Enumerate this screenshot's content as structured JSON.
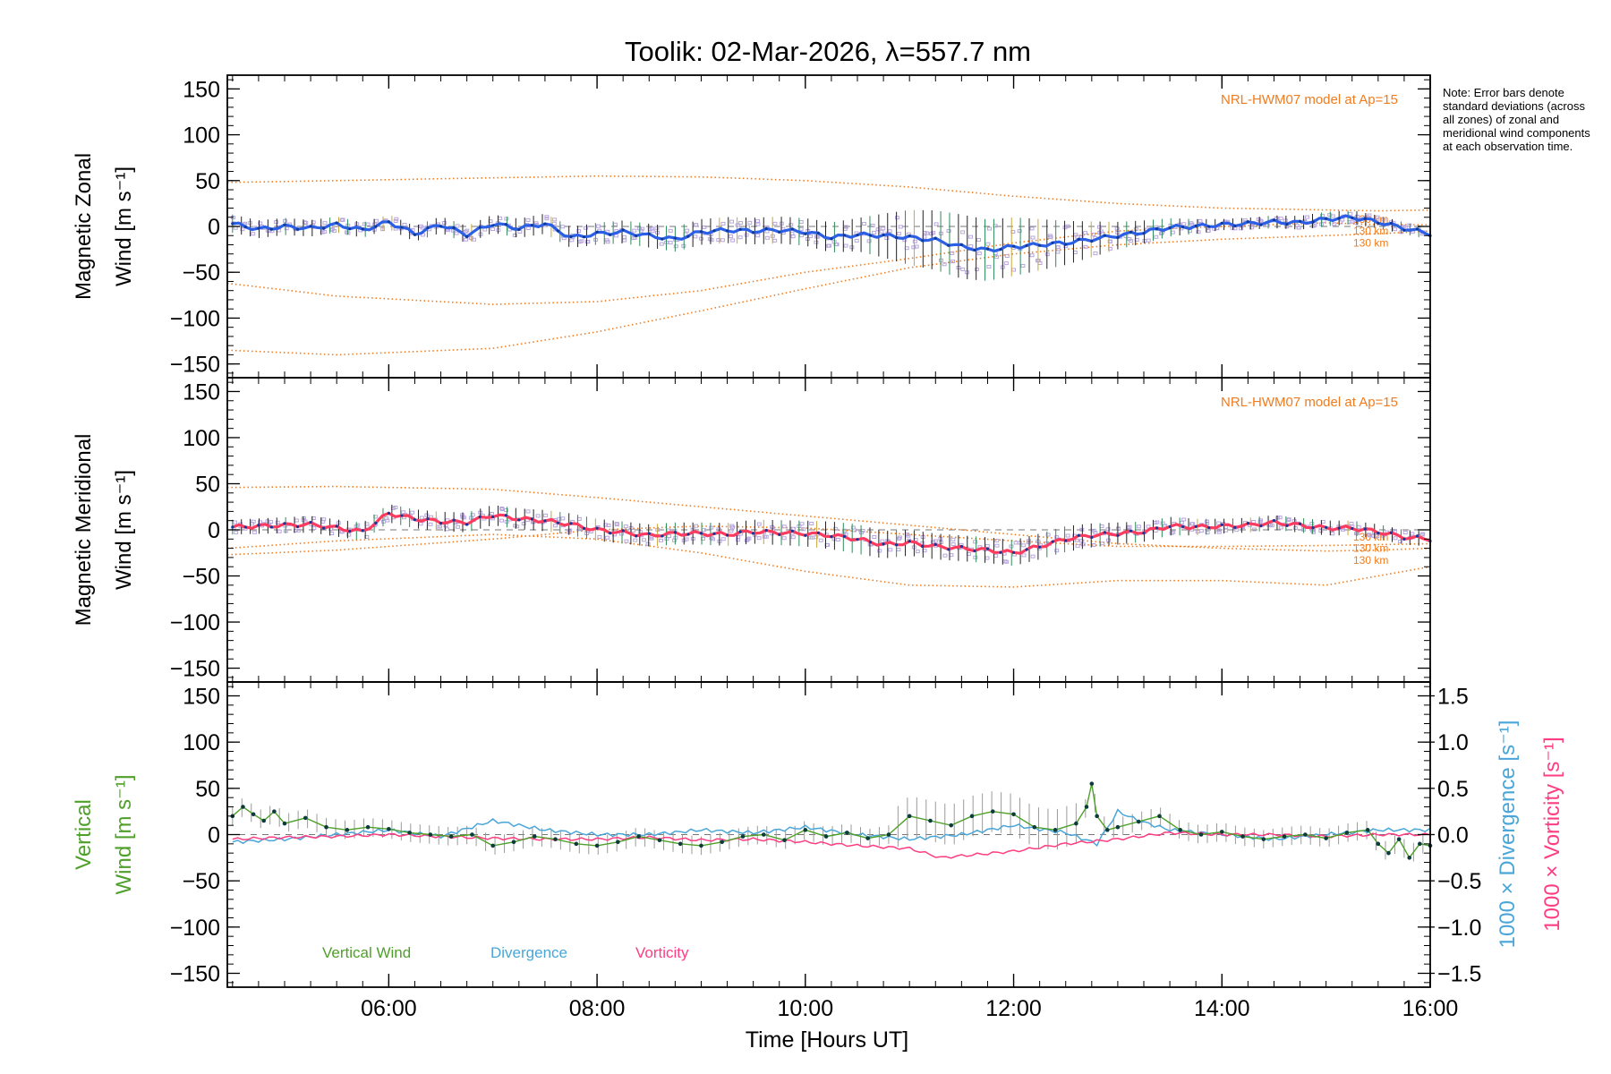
{
  "title": "Toolik: 02-Mar-2026, λ=557.7 nm",
  "note": "Note: Error bars denote standard deviations (across all zones) of zonal and meridional wind components at each observation time.",
  "colors": {
    "model": "#f07c1e",
    "zonal": "#2a5fe6",
    "meridional": "#ff3a5f",
    "vertical": "#4fa02a",
    "divergence": "#4aa6d8",
    "vorticity": "#ff3d82",
    "zone_samples": "#b7a6dc",
    "error_bar": "#222222"
  },
  "x_axis": {
    "label": "Time [Hours UT]",
    "range_hours": [
      4.45,
      16.0
    ],
    "tick_hours": [
      6,
      8,
      10,
      12,
      14,
      16
    ],
    "tick_labels": [
      "06:00",
      "08:00",
      "10:00",
      "12:00",
      "14:00",
      "16:00"
    ]
  },
  "chart_data": [
    {
      "type": "line",
      "id": "zonal",
      "ylabel_line1": "Magnetic Zonal",
      "ylabel_line2": "Wind [m s⁻¹]",
      "ylim": [
        -165,
        165
      ],
      "yticks": [
        -150,
        -100,
        -50,
        0,
        50,
        100,
        150
      ],
      "ytick_labels": [
        "−150",
        "−100",
        "−50",
        "0",
        "50",
        "100",
        "150"
      ],
      "model_label": "NRL-HWM07 model at Ap=15",
      "model_alt_labels": [
        "130 km",
        "130 km",
        "130 km"
      ],
      "series": [
        {
          "name": "Zonal wind (mean)",
          "x": [
            4.5,
            4.75,
            5.0,
            5.25,
            5.5,
            5.75,
            6.0,
            6.25,
            6.5,
            6.75,
            7.0,
            7.25,
            7.5,
            7.75,
            8.0,
            8.25,
            8.5,
            8.75,
            9.0,
            9.25,
            9.5,
            9.75,
            10.0,
            10.25,
            10.5,
            10.75,
            11.0,
            11.25,
            11.5,
            11.75,
            12.0,
            12.25,
            12.5,
            12.75,
            13.0,
            13.25,
            13.5,
            13.75,
            14.0,
            14.25,
            14.5,
            14.75,
            15.0,
            15.25,
            15.5,
            15.75,
            16.0
          ],
          "values": [
            3,
            -3,
            0,
            -2,
            2,
            -4,
            5,
            -8,
            2,
            -9,
            3,
            -2,
            3,
            -12,
            -8,
            -6,
            -10,
            -14,
            -6,
            -4,
            -5,
            -4,
            -6,
            -12,
            -9,
            -10,
            -12,
            -15,
            -22,
            -26,
            -22,
            -20,
            -18,
            -14,
            -10,
            -6,
            -1,
            0,
            2,
            3,
            5,
            4,
            8,
            10,
            5,
            -2,
            -8
          ]
        },
        {
          "name": "Zonal error (std dev)",
          "x": [
            4.5,
            6.0,
            8.0,
            9.0,
            10.0,
            10.5,
            11.0,
            11.5,
            12.0,
            12.5,
            13.0,
            13.5,
            14.0,
            15.0,
            16.0
          ],
          "values": [
            10,
            8,
            12,
            14,
            15,
            18,
            30,
            35,
            32,
            24,
            15,
            10,
            6,
            8,
            6
          ]
        },
        {
          "name": "HWM07 model 1",
          "x": [
            4.45,
            5.5,
            7.0,
            8.0,
            9.0,
            10.0,
            11.0,
            12.0,
            13.0,
            14.0,
            15.0,
            15.5,
            16.0
          ],
          "values": [
            48,
            50,
            53,
            55,
            54,
            50,
            43,
            33,
            25,
            20,
            18,
            17,
            18
          ]
        },
        {
          "name": "HWM07 model 2",
          "x": [
            4.45,
            5.5,
            7.0,
            8.0,
            9.0,
            10.0,
            11.0,
            12.0,
            13.0,
            14.0,
            15.0,
            15.5,
            16.0
          ],
          "values": [
            -62,
            -76,
            -85,
            -82,
            -70,
            -50,
            -35,
            -18,
            -5,
            0,
            4,
            2,
            2
          ]
        },
        {
          "name": "HWM07 model 3",
          "x": [
            4.45,
            5.5,
            7.0,
            8.0,
            9.0,
            10.0,
            11.0,
            12.0,
            13.0,
            14.0,
            15.0,
            15.5,
            16.0
          ],
          "values": [
            -135,
            -140,
            -133,
            -115,
            -92,
            -68,
            -45,
            -30,
            -20,
            -14,
            -10,
            -8,
            -5
          ]
        }
      ]
    },
    {
      "type": "line",
      "id": "meridional",
      "ylabel_line1": "Magnetic Meridional",
      "ylabel_line2": "Wind [m s⁻¹]",
      "ylim": [
        -165,
        165
      ],
      "yticks": [
        -150,
        -100,
        -50,
        0,
        50,
        100,
        150
      ],
      "ytick_labels": [
        "−150",
        "−100",
        "−50",
        "0",
        "50",
        "100",
        "150"
      ],
      "model_label": "NRL-HWM07 model at Ap=15",
      "model_alt_labels": [
        "130 km",
        "130 km",
        "130 km"
      ],
      "series": [
        {
          "name": "Meridional wind (mean)",
          "x": [
            4.5,
            4.75,
            5.0,
            5.25,
            5.5,
            5.75,
            6.0,
            6.25,
            6.5,
            6.75,
            7.0,
            7.25,
            7.5,
            7.75,
            8.0,
            8.25,
            8.5,
            8.75,
            9.0,
            9.25,
            9.5,
            9.75,
            10.0,
            10.25,
            10.5,
            10.75,
            11.0,
            11.25,
            11.5,
            11.75,
            12.0,
            12.25,
            12.5,
            12.75,
            13.0,
            13.25,
            13.5,
            13.75,
            14.0,
            14.25,
            14.5,
            14.75,
            15.0,
            15.25,
            15.5,
            15.75,
            16.0
          ],
          "values": [
            3,
            4,
            5,
            6,
            2,
            -2,
            18,
            12,
            9,
            8,
            16,
            12,
            10,
            6,
            0,
            -3,
            -6,
            -4,
            -4,
            -5,
            -2,
            -3,
            -4,
            -6,
            -10,
            -16,
            -14,
            -18,
            -20,
            -22,
            -25,
            -18,
            -10,
            -6,
            -4,
            -2,
            4,
            3,
            4,
            5,
            8,
            5,
            2,
            2,
            -2,
            -8,
            -10
          ]
        },
        {
          "name": "Meridional error (std dev)",
          "x": [
            4.5,
            6.0,
            8.0,
            9.0,
            10.0,
            10.5,
            11.0,
            11.5,
            12.0,
            12.5,
            13.0,
            14.0,
            15.0,
            16.0
          ],
          "values": [
            8,
            10,
            12,
            12,
            14,
            16,
            14,
            14,
            14,
            14,
            12,
            8,
            8,
            8
          ]
        },
        {
          "name": "HWM07 model 1",
          "x": [
            4.45,
            5.5,
            7.0,
            8.0,
            9.0,
            10.0,
            11.0,
            12.0,
            13.0,
            14.0,
            15.0,
            15.5,
            16.0
          ],
          "values": [
            46,
            47,
            44,
            35,
            25,
            15,
            5,
            -5,
            -15,
            -20,
            -23,
            -22,
            -20
          ]
        },
        {
          "name": "HWM07 model 2",
          "x": [
            4.45,
            5.5,
            7.0,
            8.0,
            9.0,
            10.0,
            11.0,
            12.0,
            13.0,
            14.0,
            15.0,
            15.5,
            16.0
          ],
          "values": [
            -27,
            -22,
            -10,
            0,
            4,
            2,
            -5,
            -12,
            -18,
            -18,
            -17,
            -16,
            -15
          ]
        },
        {
          "name": "HWM07 model 3",
          "x": [
            4.45,
            5.5,
            7.0,
            8.0,
            9.0,
            10.0,
            11.0,
            12.0,
            13.0,
            14.0,
            15.0,
            15.5,
            16.0
          ],
          "values": [
            -20,
            -12,
            -5,
            -10,
            -25,
            -45,
            -60,
            -62,
            -55,
            -55,
            -60,
            -50,
            -40
          ]
        }
      ]
    },
    {
      "type": "line",
      "id": "vertical",
      "ylabel_line1": "Vertical",
      "ylabel_line2": "Wind [m s⁻¹]",
      "ylim": [
        -165,
        165
      ],
      "yticks": [
        -150,
        -100,
        -50,
        0,
        50,
        100,
        150
      ],
      "ytick_labels": [
        "−150",
        "−100",
        "−50",
        "0",
        "50",
        "100",
        "150"
      ],
      "y2label_div": "1000 × Divergence [s⁻¹]",
      "y2label_vort": "1000 × Vorticity [s⁻¹]",
      "y2lim": [
        -1.65,
        1.65
      ],
      "y2ticks": [
        -1.5,
        -1.0,
        -0.5,
        0.0,
        0.5,
        1.0,
        1.5
      ],
      "y2tick_labels": [
        "−1.5",
        "−1.0",
        "−0.5",
        "0.0",
        "0.5",
        "1.0",
        "1.5"
      ],
      "legend": [
        "Vertical Wind",
        "Divergence",
        "Vorticity"
      ],
      "series": [
        {
          "name": "Vertical Wind",
          "x": [
            4.5,
            4.6,
            4.7,
            4.8,
            4.9,
            5.0,
            5.2,
            5.4,
            5.6,
            5.8,
            6.0,
            6.2,
            6.4,
            6.6,
            6.8,
            7.0,
            7.2,
            7.4,
            7.6,
            7.8,
            8.0,
            8.2,
            8.4,
            8.6,
            8.8,
            9.0,
            9.2,
            9.4,
            9.6,
            9.8,
            10.0,
            10.2,
            10.4,
            10.6,
            10.8,
            11.0,
            11.2,
            11.4,
            11.6,
            11.8,
            12.0,
            12.2,
            12.4,
            12.6,
            12.7,
            12.75,
            12.8,
            12.9,
            13.0,
            13.2,
            13.4,
            13.6,
            13.8,
            14.0,
            14.2,
            14.4,
            14.6,
            14.8,
            15.0,
            15.2,
            15.4,
            15.5,
            15.6,
            15.7,
            15.8,
            15.9,
            16.0
          ],
          "values": [
            20,
            30,
            22,
            15,
            25,
            12,
            18,
            8,
            5,
            8,
            6,
            2,
            0,
            -2,
            0,
            -12,
            -8,
            -2,
            -5,
            -10,
            -12,
            -8,
            -2,
            -6,
            -10,
            -12,
            -8,
            -2,
            0,
            -6,
            5,
            -2,
            2,
            -4,
            0,
            20,
            15,
            10,
            20,
            25,
            22,
            8,
            5,
            12,
            30,
            55,
            20,
            5,
            8,
            14,
            20,
            5,
            0,
            3,
            -2,
            -5,
            -2,
            0,
            -4,
            2,
            5,
            -10,
            -20,
            -5,
            -25,
            -10,
            -12
          ]
        },
        {
          "name": "Divergence",
          "x": [
            4.5,
            5.0,
            5.5,
            6.0,
            6.5,
            7.0,
            7.5,
            8.0,
            8.5,
            9.0,
            9.5,
            10.0,
            10.5,
            11.0,
            11.5,
            12.0,
            12.5,
            12.8,
            13.0,
            13.2,
            13.5,
            14.0,
            14.5,
            15.0,
            15.5,
            16.0
          ],
          "values": [
            -0.08,
            -0.05,
            0.0,
            0.05,
            -0.02,
            0.15,
            0.05,
            0.0,
            0.0,
            0.05,
            0.02,
            0.08,
            0.0,
            -0.05,
            0.0,
            0.1,
            0.02,
            -0.1,
            0.25,
            0.15,
            0.05,
            0.0,
            -0.05,
            0.0,
            0.05,
            0.05
          ]
        },
        {
          "name": "Vorticity",
          "x": [
            4.5,
            5.0,
            5.5,
            6.0,
            6.5,
            7.0,
            7.5,
            8.0,
            8.5,
            9.0,
            9.5,
            10.0,
            10.5,
            11.0,
            11.3,
            11.6,
            12.0,
            12.5,
            13.0,
            13.5,
            14.0,
            14.5,
            15.0,
            15.5,
            16.0
          ],
          "values": [
            -0.05,
            -0.03,
            -0.02,
            0.0,
            -0.02,
            -0.04,
            -0.05,
            -0.05,
            -0.03,
            -0.06,
            -0.05,
            -0.08,
            -0.12,
            -0.15,
            -0.25,
            -0.22,
            -0.18,
            -0.1,
            -0.05,
            0.02,
            0.0,
            0.0,
            -0.02,
            0.0,
            0.0
          ]
        }
      ]
    }
  ]
}
